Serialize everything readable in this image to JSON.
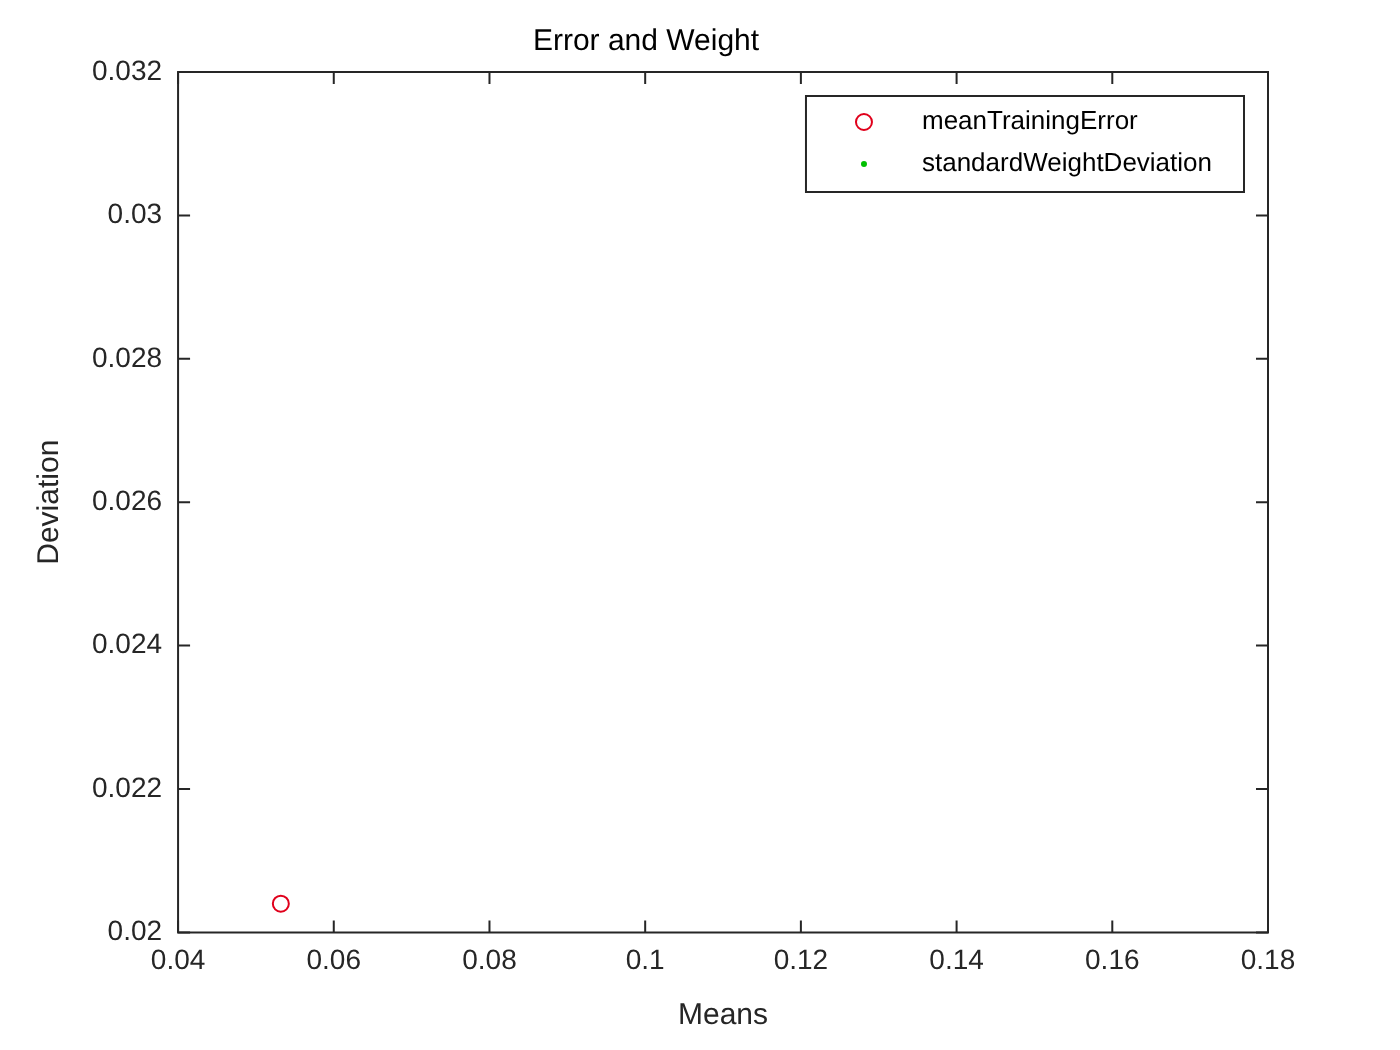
{
  "chart_data": {
    "type": "scatter",
    "title": "Error and Weight",
    "xlabel": "Means",
    "ylabel": "Deviation",
    "series": [
      {
        "name": "meanTrainingError",
        "color": "#e0001b",
        "marker": "circle",
        "x": [
          0.0532
        ],
        "values": [
          0.0204
        ]
      },
      {
        "name": "standardWeightDeviation",
        "color": "#00c000",
        "marker": "dot"
      }
    ],
    "xlim": [
      0.04,
      0.18
    ],
    "xticks": [
      0.04,
      0.06,
      0.08,
      0.1,
      0.12,
      0.14,
      0.16,
      0.18
    ],
    "ylim": [
      0.02,
      0.032
    ],
    "yticks": [
      0.02,
      0.022,
      0.024,
      0.026,
      0.028,
      0.03,
      0.032
    ],
    "grid": false,
    "legend": "top right"
  }
}
